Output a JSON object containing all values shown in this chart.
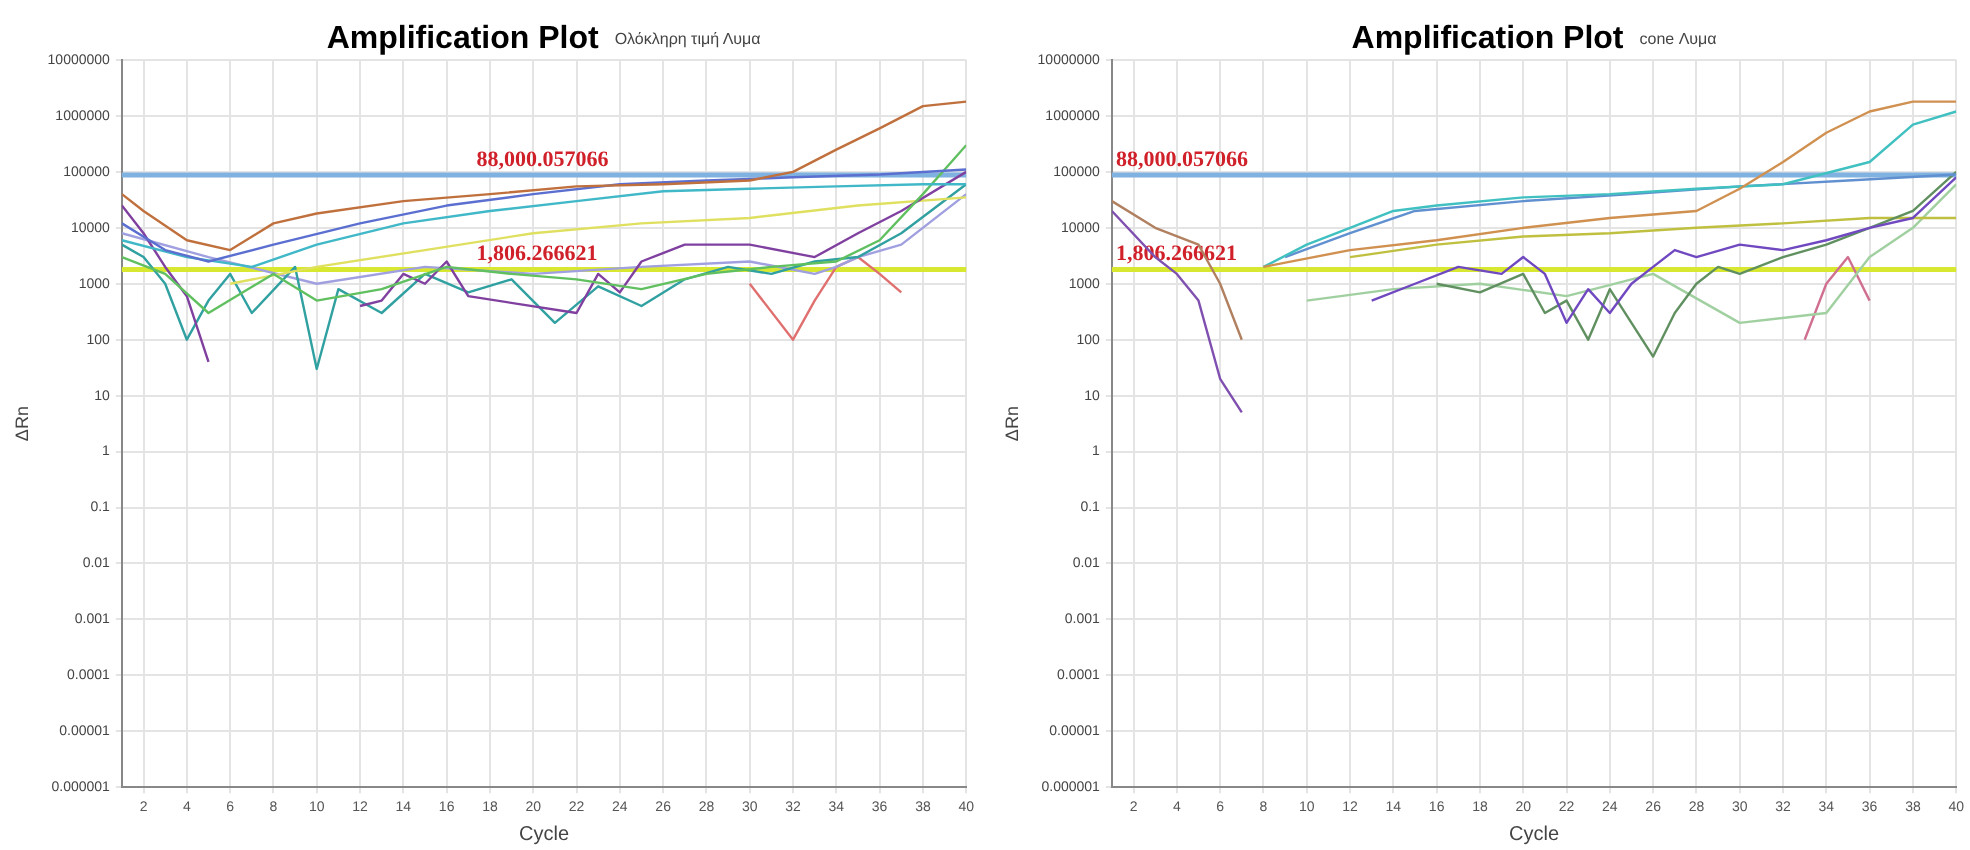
{
  "chart_data": [
    {
      "type": "line",
      "title": "Amplification Plot",
      "subtitle": "Ολόκληρη τιμή Λυμα",
      "xlabel": "Cycle",
      "ylabel": "ΔRn",
      "log": "y",
      "grid": true,
      "legend": false,
      "marker": "none",
      "line_style": "solid",
      "xlim": [
        1,
        40
      ],
      "xticks": [
        2,
        4,
        6,
        8,
        10,
        12,
        14,
        16,
        18,
        20,
        22,
        24,
        26,
        28,
        30,
        32,
        34,
        36,
        38,
        40
      ],
      "ylim": [
        1e-06,
        10000000
      ],
      "yticks": [
        {
          "value": 1e-06,
          "label": "0.000001"
        },
        {
          "value": 1e-05,
          "label": "0.00001"
        },
        {
          "value": 0.0001,
          "label": "0.0001"
        },
        {
          "value": 0.001,
          "label": "0.001"
        },
        {
          "value": 0.01,
          "label": "0.01"
        },
        {
          "value": 0.1,
          "label": "0.1"
        },
        {
          "value": 1,
          "label": "1"
        },
        {
          "value": 10,
          "label": "10"
        },
        {
          "value": 100,
          "label": "100"
        },
        {
          "value": 1000,
          "label": "1000"
        },
        {
          "value": 10000,
          "label": "10000"
        },
        {
          "value": 100000,
          "label": "100000"
        },
        {
          "value": 1000000,
          "label": "1000000"
        },
        {
          "value": 10000000,
          "label": "10000000"
        }
      ],
      "ref_lines": [
        {
          "axis": "y",
          "value": 88000.057066,
          "label": "88,000.057066",
          "color": "#7fb2e0"
        },
        {
          "axis": "y",
          "value": 1806.266621,
          "label": "1,806.266621",
          "color": "#d8e830"
        }
      ],
      "series": [
        {
          "color": "#c0703c",
          "x": [
            1,
            2,
            4,
            6,
            8,
            10,
            14,
            18,
            22,
            26,
            30,
            32,
            34,
            36,
            38,
            40
          ],
          "values": [
            40000,
            20000,
            6000,
            4000,
            12000,
            18000,
            30000,
            40000,
            55000,
            60000,
            70000,
            100000,
            250000,
            600000,
            1500000,
            1800000
          ]
        },
        {
          "color": "#5b6fd0",
          "x": [
            1,
            3,
            5,
            8,
            12,
            16,
            20,
            24,
            28,
            32,
            36,
            40
          ],
          "values": [
            12000,
            4000,
            2500,
            5000,
            12000,
            25000,
            40000,
            60000,
            70000,
            80000,
            90000,
            110000
          ]
        },
        {
          "color": "#40b8c8",
          "x": [
            1,
            4,
            7,
            10,
            14,
            18,
            22,
            26,
            30,
            34,
            38,
            40
          ],
          "values": [
            6000,
            3000,
            2000,
            5000,
            12000,
            20000,
            30000,
            45000,
            50000,
            55000,
            60000,
            60000
          ]
        },
        {
          "color": "#60c060",
          "x": [
            1,
            3,
            5,
            8,
            10,
            13,
            16,
            19,
            22,
            25,
            28,
            31,
            34,
            36,
            38,
            40
          ],
          "values": [
            3000,
            1500,
            300,
            1500,
            500,
            800,
            2000,
            1500,
            1200,
            800,
            1500,
            2000,
            2500,
            6000,
            40000,
            300000
          ]
        },
        {
          "color": "#8040a0",
          "x": [
            1,
            2,
            3,
            4,
            5,
            8,
            12,
            13,
            14,
            15,
            16,
            17,
            22,
            23,
            24,
            25,
            27,
            30,
            33,
            35,
            37,
            40
          ],
          "values": [
            25000,
            8000,
            2000,
            600,
            40,
            null,
            400,
            500,
            1500,
            1000,
            2500,
            600,
            300,
            1500,
            700,
            2500,
            5000,
            5000,
            3000,
            8000,
            20000,
            100000
          ]
        },
        {
          "color": "#e0e060",
          "x": [
            6,
            10,
            15,
            20,
            25,
            30,
            35,
            40
          ],
          "values": [
            1000,
            2000,
            4000,
            8000,
            12000,
            15000,
            25000,
            35000
          ]
        },
        {
          "color": "#30a0a0",
          "x": [
            1,
            2,
            3,
            4,
            5,
            6,
            7,
            9,
            10,
            11,
            13,
            15,
            17,
            19,
            21,
            23,
            25,
            27,
            29,
            31,
            33,
            35,
            37,
            40
          ],
          "values": [
            5000,
            3000,
            1000,
            100,
            500,
            1500,
            300,
            2000,
            30,
            800,
            300,
            1500,
            700,
            1200,
            200,
            900,
            400,
            1200,
            2000,
            1500,
            2500,
            3000,
            8000,
            60000
          ]
        },
        {
          "color": "#a0a0e0",
          "x": [
            1,
            5,
            10,
            15,
            20,
            25,
            30,
            33,
            34,
            35,
            37,
            40
          ],
          "values": [
            8000,
            3000,
            1000,
            2000,
            1500,
            2000,
            2500,
            1500,
            2000,
            3000,
            5000,
            40000
          ]
        },
        {
          "color": "#e07070",
          "x": [
            30,
            32,
            33,
            34,
            35,
            36,
            37
          ],
          "values": [
            1000,
            100,
            500,
            2000,
            3000,
            1500,
            700
          ]
        }
      ]
    },
    {
      "type": "line",
      "title": "Amplification Plot",
      "subtitle": "cone Λυμα",
      "xlabel": "Cycle",
      "ylabel": "ΔRn",
      "log": "y",
      "grid": true,
      "legend": false,
      "marker": "none",
      "line_style": "solid",
      "xlim": [
        1,
        40
      ],
      "xticks": [
        2,
        4,
        6,
        8,
        10,
        12,
        14,
        16,
        18,
        20,
        22,
        24,
        26,
        28,
        30,
        32,
        34,
        36,
        38,
        40
      ],
      "ylim": [
        1e-06,
        10000000
      ],
      "yticks": [
        {
          "value": 1e-06,
          "label": "0.000001"
        },
        {
          "value": 1e-05,
          "label": "0.00001"
        },
        {
          "value": 0.0001,
          "label": "0.0001"
        },
        {
          "value": 0.001,
          "label": "0.001"
        },
        {
          "value": 0.01,
          "label": "0.01"
        },
        {
          "value": 0.1,
          "label": "0.1"
        },
        {
          "value": 1,
          "label": "1"
        },
        {
          "value": 10,
          "label": "10"
        },
        {
          "value": 100,
          "label": "100"
        },
        {
          "value": 1000,
          "label": "1000"
        },
        {
          "value": 10000,
          "label": "10000"
        },
        {
          "value": 100000,
          "label": "100000"
        },
        {
          "value": 1000000,
          "label": "1000000"
        },
        {
          "value": 10000000,
          "label": "10000000"
        }
      ],
      "ref_lines": [
        {
          "axis": "y",
          "value": 88000.057066,
          "label": "88,000.057066",
          "color": "#7fb2e0"
        },
        {
          "axis": "y",
          "value": 1806.266621,
          "label": "1,806.266621",
          "color": "#d8e830"
        }
      ],
      "series": [
        {
          "color": "#b08060",
          "x": [
            1,
            3,
            5,
            6,
            7
          ],
          "values": [
            30000,
            10000,
            5000,
            1000,
            100
          ]
        },
        {
          "color": "#d09050",
          "x": [
            8,
            12,
            16,
            20,
            24,
            28,
            30,
            32,
            34,
            36,
            38,
            40
          ],
          "values": [
            2000,
            4000,
            6000,
            10000,
            15000,
            20000,
            50000,
            150000,
            500000,
            1200000,
            1800000,
            1800000
          ]
        },
        {
          "color": "#40c0c0",
          "x": [
            8,
            10,
            12,
            14,
            16,
            20,
            24,
            28,
            32,
            36,
            38,
            40
          ],
          "values": [
            2000,
            5000,
            10000,
            20000,
            25000,
            35000,
            40000,
            50000,
            60000,
            150000,
            700000,
            1200000
          ]
        },
        {
          "color": "#6090d0",
          "x": [
            9,
            12,
            15,
            20,
            25,
            30,
            35,
            40
          ],
          "values": [
            3000,
            8000,
            20000,
            30000,
            40000,
            55000,
            70000,
            90000
          ]
        },
        {
          "color": "#8050b0",
          "x": [
            1,
            3,
            4,
            5,
            6,
            7
          ],
          "values": [
            20000,
            3000,
            1500,
            500,
            20,
            5
          ]
        },
        {
          "color": "#7048c0",
          "x": [
            13,
            15,
            17,
            19,
            20,
            21,
            22,
            23,
            24,
            25,
            26,
            27,
            28,
            30,
            32,
            34,
            36,
            38,
            40
          ],
          "values": [
            500,
            1000,
            2000,
            1500,
            3000,
            1500,
            200,
            800,
            300,
            1000,
            2000,
            4000,
            3000,
            5000,
            4000,
            6000,
            10000,
            15000,
            80000
          ]
        },
        {
          "color": "#609060",
          "x": [
            16,
            18,
            20,
            21,
            22,
            23,
            24,
            25,
            26,
            27,
            28,
            29,
            30,
            32,
            34,
            36,
            38,
            40
          ],
          "values": [
            1000,
            700,
            1500,
            300,
            500,
            100,
            800,
            200,
            50,
            300,
            1000,
            2000,
            1500,
            3000,
            5000,
            10000,
            20000,
            100000
          ]
        },
        {
          "color": "#c0c040",
          "x": [
            12,
            16,
            20,
            24,
            28,
            32,
            36,
            40
          ],
          "values": [
            3000,
            5000,
            7000,
            8000,
            10000,
            12000,
            15000,
            15000
          ]
        },
        {
          "color": "#a0d0a0",
          "x": [
            10,
            14,
            18,
            22,
            26,
            30,
            34,
            36,
            38,
            40
          ],
          "values": [
            500,
            800,
            1000,
            600,
            1500,
            200,
            300,
            3000,
            10000,
            60000
          ]
        },
        {
          "color": "#d07090",
          "x": [
            33,
            34,
            35,
            36
          ],
          "values": [
            100,
            1000,
            3000,
            500
          ]
        }
      ]
    }
  ]
}
